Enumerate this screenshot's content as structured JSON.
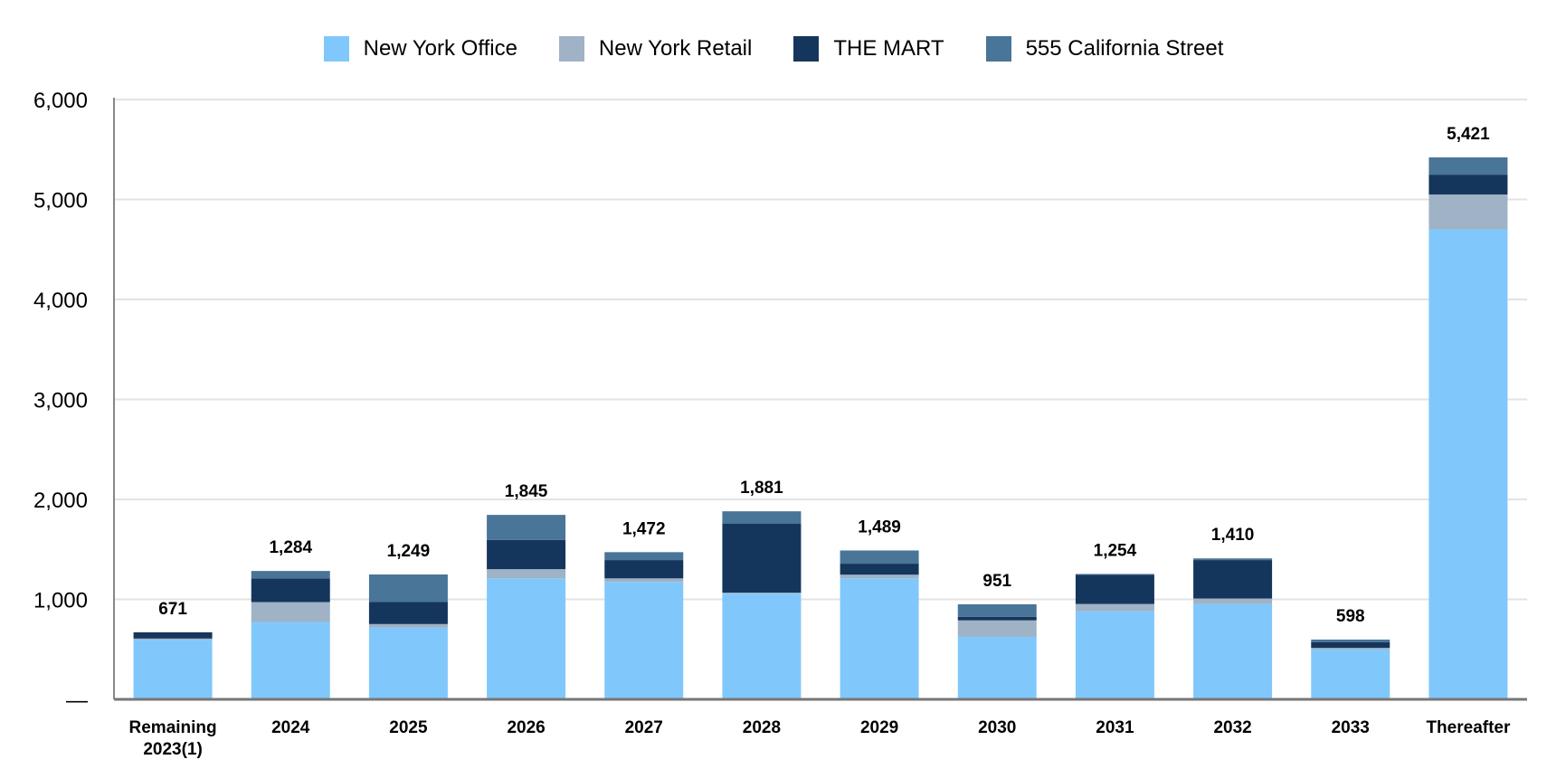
{
  "chart_data": {
    "type": "bar",
    "stacked": true,
    "categories": [
      "Remaining 2023(1)",
      "2024",
      "2025",
      "2026",
      "2027",
      "2028",
      "2029",
      "2030",
      "2031",
      "2032",
      "2033",
      "Thereafter"
    ],
    "category_lines": [
      [
        "Remaining",
        "2023(1)"
      ],
      [
        "2024"
      ],
      [
        "2025"
      ],
      [
        "2026"
      ],
      [
        "2027"
      ],
      [
        "2028"
      ],
      [
        "2029"
      ],
      [
        "2030"
      ],
      [
        "2031"
      ],
      [
        "2032"
      ],
      [
        "2033"
      ],
      [
        "Thereafter"
      ]
    ],
    "series": [
      {
        "name": "New York Office",
        "color": "#80c8fc",
        "values": [
          594,
          774,
          716,
          1210,
          1174,
          1058,
          1210,
          625,
          881,
          954,
          497,
          4702
        ]
      },
      {
        "name": "New York Retail",
        "color": "#9fb2c6",
        "values": [
          14,
          199,
          37,
          92,
          36,
          9,
          37,
          165,
          73,
          55,
          18,
          348
        ]
      },
      {
        "name": "THE MART",
        "color": "#15365c",
        "values": [
          63,
          237,
          220,
          293,
          183,
          692,
          110,
          36,
          293,
          384,
          58,
          198
        ]
      },
      {
        "name": "555 California Street",
        "color": "#487598",
        "values": [
          0,
          74,
          276,
          250,
          79,
          122,
          132,
          125,
          7,
          17,
          25,
          173
        ]
      }
    ],
    "totals": [
      "671",
      "1,284",
      "1,249",
      "1,845",
      "1,472",
      "1,881",
      "1,489",
      "951",
      "1,254",
      "1,410",
      "598",
      "5,421"
    ],
    "ylim": [
      0,
      6000
    ],
    "yticks": [
      0,
      1000,
      2000,
      3000,
      4000,
      5000,
      6000
    ],
    "ytick_labels": [
      "—",
      "1,000",
      "2,000",
      "3,000",
      "4,000",
      "5,000",
      "6,000"
    ],
    "grid": true,
    "legend_position": "top-center",
    "xlabel": "",
    "ylabel": "",
    "title": ""
  }
}
